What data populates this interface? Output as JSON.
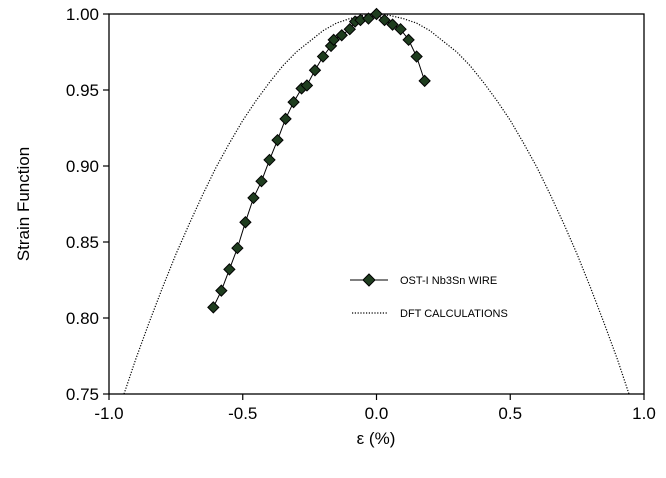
{
  "chart_data": {
    "type": "line",
    "xlabel": "ε (%)",
    "ylabel": "Strain Function",
    "xlim": [
      -1.0,
      1.0
    ],
    "ylim": [
      0.75,
      1.0
    ],
    "xticks": [
      "-1.0",
      "-0.5",
      "0.0",
      "0.5",
      "1.0"
    ],
    "xtick_values": [
      -1.0,
      -0.5,
      0.0,
      0.5,
      1.0
    ],
    "yticks": [
      "0.75",
      "0.80",
      "0.85",
      "0.90",
      "0.95",
      "1.00"
    ],
    "ytick_values": [
      0.75,
      0.8,
      0.85,
      0.9,
      0.95,
      1.0
    ],
    "grid": false,
    "legend_position": "center-right",
    "series": [
      {
        "name": "OST-I Nb3Sn WIRE",
        "style": "solid line with diamond markers",
        "color": "#000000",
        "marker_fill": "#1f3d1f",
        "x": [
          -0.61,
          -0.58,
          -0.55,
          -0.52,
          -0.49,
          -0.46,
          -0.43,
          -0.4,
          -0.37,
          -0.34,
          -0.31,
          -0.28,
          -0.26,
          -0.23,
          -0.2,
          -0.17,
          -0.16,
          -0.13,
          -0.1,
          -0.08,
          -0.06,
          -0.03,
          0.0,
          0.03,
          0.06,
          0.09,
          0.12,
          0.15,
          0.18
        ],
        "y": [
          0.807,
          0.818,
          0.832,
          0.846,
          0.863,
          0.879,
          0.89,
          0.904,
          0.917,
          0.931,
          0.942,
          0.951,
          0.953,
          0.963,
          0.972,
          0.979,
          0.983,
          0.986,
          0.99,
          0.995,
          0.996,
          0.997,
          1.0,
          0.996,
          0.993,
          0.99,
          0.983,
          0.972,
          0.956
        ]
      },
      {
        "name": "DFT CALCULATIONS",
        "style": "dotted line",
        "color": "#000000",
        "x": [
          -0.944,
          -0.9,
          -0.85,
          -0.8,
          -0.75,
          -0.7,
          -0.65,
          -0.6,
          -0.55,
          -0.5,
          -0.45,
          -0.4,
          -0.35,
          -0.3,
          -0.25,
          -0.2,
          -0.15,
          -0.1,
          -0.05,
          0.0,
          0.05,
          0.1,
          0.15,
          0.2,
          0.25,
          0.3,
          0.35,
          0.4,
          0.45,
          0.5,
          0.55,
          0.6,
          0.65,
          0.7,
          0.75,
          0.8,
          0.85,
          0.9,
          0.944
        ],
        "y": [
          0.75,
          0.773,
          0.797,
          0.82,
          0.842,
          0.862,
          0.881,
          0.899,
          0.915,
          0.93,
          0.943,
          0.955,
          0.966,
          0.975,
          0.982,
          0.989,
          0.994,
          0.997,
          0.999,
          1.0,
          0.999,
          0.997,
          0.994,
          0.989,
          0.982,
          0.975,
          0.966,
          0.955,
          0.943,
          0.93,
          0.915,
          0.899,
          0.881,
          0.862,
          0.842,
          0.82,
          0.797,
          0.773,
          0.75
        ]
      }
    ]
  }
}
